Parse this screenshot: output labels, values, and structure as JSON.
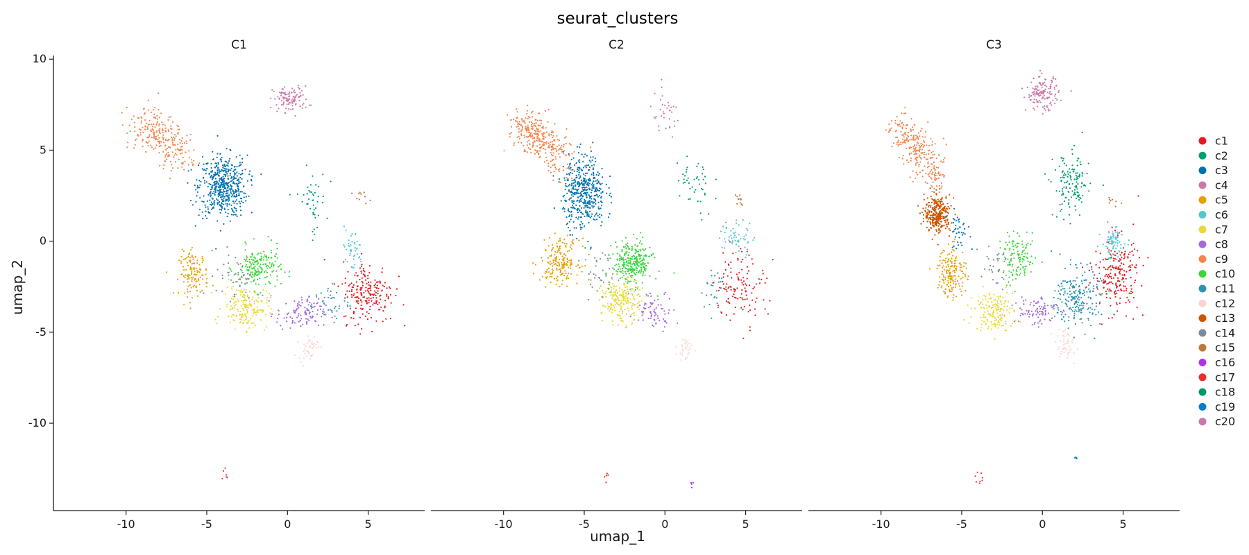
{
  "chart_data": {
    "type": "scatter",
    "title": "seurat_clusters",
    "xlabel": "umap_1",
    "ylabel": "umap_2",
    "xlim": [
      -14.5,
      8.5
    ],
    "ylim": [
      -14.8,
      10.2
    ],
    "x_ticks": [
      -10,
      -5,
      0,
      5
    ],
    "y_ticks": [
      10,
      5,
      0,
      -5,
      -10
    ],
    "grid": false,
    "legend_position": "right",
    "legend": [
      {
        "name": "c1",
        "color": "#E41A1C"
      },
      {
        "name": "c2",
        "color": "#009E73"
      },
      {
        "name": "c3",
        "color": "#0072B2"
      },
      {
        "name": "c4",
        "color": "#CC79A7"
      },
      {
        "name": "c5",
        "color": "#E69F00"
      },
      {
        "name": "c6",
        "color": "#56C5D0"
      },
      {
        "name": "c7",
        "color": "#EBD834"
      },
      {
        "name": "c8",
        "color": "#A36AE0"
      },
      {
        "name": "c9",
        "color": "#F4844C"
      },
      {
        "name": "c10",
        "color": "#3AD63A"
      },
      {
        "name": "c11",
        "color": "#2E94AE"
      },
      {
        "name": "c12",
        "color": "#FBD5D3"
      },
      {
        "name": "c13",
        "color": "#CC5500"
      },
      {
        "name": "c14",
        "color": "#7A8AA0"
      },
      {
        "name": "c15",
        "color": "#BC7A3A"
      },
      {
        "name": "c16",
        "color": "#B030F0"
      },
      {
        "name": "c17",
        "color": "#EE2C2C"
      },
      {
        "name": "c18",
        "color": "#00996B"
      },
      {
        "name": "c19",
        "color": "#0A7CC8"
      },
      {
        "name": "c20",
        "color": "#C878B0"
      }
    ],
    "panels": [
      {
        "name": "C1",
        "clusters": [
          {
            "cluster": "c9",
            "n": 260,
            "cx": [
              -9.2,
              -7.8,
              -6.5
            ],
            "cy": [
              6.5,
              6.0,
              4.4
            ],
            "sx": 0.6,
            "sy": 0.55
          },
          {
            "cluster": "c3",
            "n": 520,
            "cx": -4.0,
            "cy": 3.0,
            "sx": 0.75,
            "sy": 0.85
          },
          {
            "cluster": "c4",
            "n": 110,
            "cx": 0.2,
            "cy": 7.8,
            "sx": 0.55,
            "sy": 0.35
          },
          {
            "cluster": "c2",
            "n": 45,
            "cx": 1.5,
            "cy": 2.2,
            "sx": 0.45,
            "sy": 0.9
          },
          {
            "cluster": "c5",
            "n": 130,
            "cx": -5.8,
            "cy": -1.8,
            "sx": 0.45,
            "sy": 0.6
          },
          {
            "cluster": "c10",
            "n": 190,
            "cx": -1.8,
            "cy": -1.5,
            "sx": 0.7,
            "sy": 0.6
          },
          {
            "cluster": "c7",
            "n": 170,
            "cx": -2.6,
            "cy": -3.6,
            "sx": 0.7,
            "sy": 0.6
          },
          {
            "cluster": "c8",
            "n": 110,
            "cx": 0.8,
            "cy": -4.0,
            "sx": 0.75,
            "sy": 0.45
          },
          {
            "cluster": "c14",
            "n": 45,
            "cx": -3.2,
            "cy": -1.8,
            "sx": 0.6,
            "sy": 0.7
          },
          {
            "cluster": "c11",
            "n": 40,
            "cx": 2.5,
            "cy": -3.4,
            "sx": 0.7,
            "sy": 0.5
          },
          {
            "cluster": "c1",
            "n": 210,
            "cx": 5.0,
            "cy": -2.8,
            "sx": 0.8,
            "sy": 0.85
          },
          {
            "cluster": "c6",
            "n": 45,
            "cx": 4.0,
            "cy": -0.5,
            "sx": 0.35,
            "sy": 0.6
          },
          {
            "cluster": "c12",
            "n": 45,
            "cx": 1.3,
            "cy": -5.8,
            "sx": 0.3,
            "sy": 0.35
          },
          {
            "cluster": "c15",
            "n": 10,
            "cx": 4.6,
            "cy": 2.4,
            "sx": 0.25,
            "sy": 0.15
          },
          {
            "cluster": "c17",
            "n": 6,
            "cx": -3.9,
            "cy": -12.8,
            "sx": 0.15,
            "sy": 0.2
          }
        ]
      },
      {
        "name": "C2",
        "clusters": [
          {
            "cluster": "c9",
            "n": 320,
            "cx": [
              -8.8,
              -7.8,
              -6.2
            ],
            "cy": [
              6.6,
              5.5,
              4.4
            ],
            "sx": 0.55,
            "sy": 0.5
          },
          {
            "cluster": "c3",
            "n": 460,
            "cx": -5.0,
            "cy": 2.7,
            "sx": 0.65,
            "sy": 1.0
          },
          {
            "cluster": "c4",
            "n": 35,
            "cx": 0.0,
            "cy": 6.9,
            "sx": 0.5,
            "sy": 0.6
          },
          {
            "cluster": "c2",
            "n": 45,
            "cx": 1.8,
            "cy": 3.0,
            "sx": 0.6,
            "sy": 1.0
          },
          {
            "cluster": "c5",
            "n": 190,
            "cx": -6.5,
            "cy": -1.1,
            "sx": 0.6,
            "sy": 0.6
          },
          {
            "cluster": "c10",
            "n": 280,
            "cx": -2.0,
            "cy": -1.2,
            "sx": 0.6,
            "sy": 0.6
          },
          {
            "cluster": "c7",
            "n": 210,
            "cx": -2.7,
            "cy": -3.3,
            "sx": 0.6,
            "sy": 0.6
          },
          {
            "cluster": "c8",
            "n": 70,
            "cx": -0.6,
            "cy": -3.8,
            "sx": 0.6,
            "sy": 0.5
          },
          {
            "cluster": "c14",
            "n": 40,
            "cx": -3.8,
            "cy": -1.8,
            "sx": 0.7,
            "sy": 0.6
          },
          {
            "cluster": "c11",
            "n": 30,
            "cx": 3.2,
            "cy": -2.6,
            "sx": 0.5,
            "sy": 0.6
          },
          {
            "cluster": "c1",
            "n": 120,
            "cx": 4.7,
            "cy": -2.4,
            "sx": 0.8,
            "sy": 1.0
          },
          {
            "cluster": "c6",
            "n": 55,
            "cx": 4.4,
            "cy": 0.2,
            "sx": 0.55,
            "sy": 0.5
          },
          {
            "cluster": "c12",
            "n": 30,
            "cx": 1.3,
            "cy": -5.9,
            "sx": 0.25,
            "sy": 0.35
          },
          {
            "cluster": "c15",
            "n": 12,
            "cx": 4.6,
            "cy": 2.3,
            "sx": 0.12,
            "sy": 0.15
          },
          {
            "cluster": "c17",
            "n": 5,
            "cx": -3.8,
            "cy": -12.9,
            "sx": 0.15,
            "sy": 0.2
          },
          {
            "cluster": "c16",
            "n": 4,
            "cx": 1.7,
            "cy": -13.4,
            "sx": 0.08,
            "sy": 0.1
          }
        ]
      },
      {
        "name": "C3",
        "clusters": [
          {
            "cluster": "c9",
            "n": 280,
            "cx": [
              -8.8,
              -7.6,
              -6.6
            ],
            "cy": [
              6.3,
              5.0,
              3.3
            ],
            "sx": 0.5,
            "sy": 0.5
          },
          {
            "cluster": "c13",
            "n": 300,
            "cx": -6.5,
            "cy": 1.5,
            "sx": 0.4,
            "sy": 0.5
          },
          {
            "cluster": "c4",
            "n": 150,
            "cx": 0.0,
            "cy": 8.1,
            "sx": 0.5,
            "sy": 0.45
          },
          {
            "cluster": "c2",
            "n": 140,
            "cx": 1.8,
            "cy": 3.0,
            "sx": 0.55,
            "sy": 0.9
          },
          {
            "cluster": "c3",
            "n": 40,
            "cx": -5.2,
            "cy": 0.6,
            "sx": 0.35,
            "sy": 0.5
          },
          {
            "cluster": "c5",
            "n": 170,
            "cx": -5.6,
            "cy": -1.7,
            "sx": 0.45,
            "sy": 0.7
          },
          {
            "cluster": "c10",
            "n": 130,
            "cx": -1.5,
            "cy": -1.0,
            "sx": 0.6,
            "sy": 0.6
          },
          {
            "cluster": "c7",
            "n": 160,
            "cx": -3.0,
            "cy": -3.8,
            "sx": 0.6,
            "sy": 0.55
          },
          {
            "cluster": "c8",
            "n": 90,
            "cx": -0.5,
            "cy": -3.8,
            "sx": 0.7,
            "sy": 0.45
          },
          {
            "cluster": "c11",
            "n": 220,
            "cx": 2.2,
            "cy": -3.1,
            "sx": 0.7,
            "sy": 0.8
          },
          {
            "cluster": "c1",
            "n": 220,
            "cx": 4.6,
            "cy": -1.8,
            "sx": 0.7,
            "sy": 1.0
          },
          {
            "cluster": "c6",
            "n": 80,
            "cx": 4.4,
            "cy": -0.1,
            "sx": 0.35,
            "sy": 0.45
          },
          {
            "cluster": "c12",
            "n": 50,
            "cx": 1.4,
            "cy": -5.7,
            "sx": 0.35,
            "sy": 0.45
          },
          {
            "cluster": "c14",
            "n": 30,
            "cx": -3.0,
            "cy": -1.6,
            "sx": 0.5,
            "sy": 0.5
          },
          {
            "cluster": "c15",
            "n": 8,
            "cx": 4.5,
            "cy": 2.2,
            "sx": 0.2,
            "sy": 0.15
          },
          {
            "cluster": "c17",
            "n": 8,
            "cx": -4.0,
            "cy": -13.0,
            "sx": 0.2,
            "sy": 0.25
          },
          {
            "cluster": "c19",
            "n": 4,
            "cx": 2.1,
            "cy": -11.9,
            "sx": 0.05,
            "sy": 0.05
          }
        ]
      }
    ]
  }
}
